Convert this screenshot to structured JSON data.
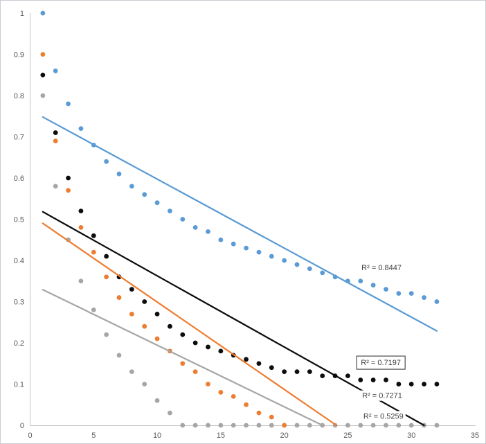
{
  "chart_data": {
    "type": "scatter",
    "title": "",
    "xlabel": "",
    "ylabel": "",
    "xlim": [
      0,
      35
    ],
    "ylim": [
      0,
      1
    ],
    "grid": false,
    "legend": "none",
    "x_tick_labels": [
      "0",
      "5",
      "10",
      "15",
      "20",
      "25",
      "30",
      "35"
    ],
    "y_tick_labels": [
      "0",
      "0.1",
      "0.2",
      "0.3",
      "0.4",
      "0.5",
      "0.6",
      "0.7",
      "0.8",
      "0.9",
      "1"
    ],
    "axis_color": "#c3c3c3",
    "tick_label_color": "#595959",
    "annotation_color": "#404040",
    "series": [
      {
        "name": "blue",
        "color": "#5B9BD5",
        "x": [
          1,
          2,
          3,
          4,
          5,
          6,
          7,
          8,
          9,
          10,
          11,
          12,
          13,
          14,
          15,
          16,
          17,
          18,
          19,
          20,
          21,
          22,
          23,
          24,
          25,
          26,
          27,
          28,
          29,
          30,
          31,
          32
        ],
        "y": [
          1.0,
          0.86,
          0.78,
          0.72,
          0.68,
          0.64,
          0.61,
          0.58,
          0.56,
          0.54,
          0.52,
          0.5,
          0.48,
          0.47,
          0.45,
          0.44,
          0.43,
          0.42,
          0.41,
          0.4,
          0.39,
          0.38,
          0.37,
          0.36,
          0.35,
          0.35,
          0.34,
          0.33,
          0.32,
          0.32,
          0.31,
          0.3
        ],
        "trendline": {
          "x1": 1,
          "y1": 0.748,
          "x2": 32,
          "y2": 0.229
        }
      },
      {
        "name": "gray",
        "color": "#A6A6A6",
        "x": [
          1,
          2,
          3,
          4,
          5,
          6,
          7,
          8,
          9,
          10,
          11,
          12,
          13,
          14,
          15,
          16,
          17,
          18,
          19,
          20,
          21,
          22,
          23,
          24,
          25,
          26,
          27,
          28,
          29,
          30,
          31,
          32
        ],
        "y": [
          0.8,
          0.58,
          0.45,
          0.35,
          0.28,
          0.22,
          0.17,
          0.13,
          0.1,
          0.06,
          0.03,
          0,
          0,
          0,
          0,
          0,
          0,
          0,
          0,
          0,
          0,
          0,
          0,
          0,
          0,
          0,
          0,
          0,
          0,
          0,
          0,
          0
        ],
        "trendline": {
          "x1": 1,
          "y1": 0.329,
          "x2": 23,
          "y2": 0
        }
      },
      {
        "name": "orange",
        "color": "#ED7D31",
        "x": [
          1,
          2,
          3,
          4,
          5,
          6,
          7,
          8,
          9,
          10,
          11,
          12,
          13,
          14,
          15,
          16,
          17,
          18,
          19,
          20
        ],
        "y": [
          0.9,
          0.69,
          0.57,
          0.48,
          0.42,
          0.36,
          0.31,
          0.27,
          0.24,
          0.21,
          0.18,
          0.15,
          0.13,
          0.1,
          0.08,
          0.07,
          0.05,
          0.03,
          0.02,
          0
        ],
        "trendline": {
          "x1": 1,
          "y1": 0.49,
          "x2": 24.1,
          "y2": 0
        }
      },
      {
        "name": "black",
        "color": "#0d0d0d",
        "x": [
          1,
          2,
          3,
          4,
          5,
          6,
          7,
          8,
          9,
          10,
          11,
          12,
          13,
          14,
          15,
          16,
          17,
          18,
          19,
          20,
          21,
          22,
          23,
          24,
          25,
          26,
          27,
          28,
          29,
          30,
          31,
          32
        ],
        "y": [
          0.85,
          0.71,
          0.6,
          0.52,
          0.46,
          0.41,
          0.36,
          0.33,
          0.3,
          0.27,
          0.24,
          0.22,
          0.2,
          0.19,
          0.18,
          0.17,
          0.16,
          0.15,
          0.14,
          0.13,
          0.13,
          0.13,
          0.12,
          0.12,
          0.12,
          0.11,
          0.11,
          0.11,
          0.1,
          0.1,
          0.1,
          0.1
        ],
        "trendline": {
          "x1": 1,
          "y1": 0.518,
          "x2": 31,
          "y2": 0
        }
      }
    ],
    "r2_labels": [
      {
        "text": "R² = 0.8447",
        "x": 27.65,
        "y": 0.382,
        "boxed": false
      },
      {
        "text": "R² = 0.7197",
        "x": 27.6,
        "y": 0.152,
        "boxed": true
      },
      {
        "text": "R² = 0.7271",
        "x": 27.7,
        "y": 0.072,
        "boxed": false
      },
      {
        "text": "R² = 0.5259",
        "x": 27.8,
        "y": 0.022,
        "boxed": false
      }
    ]
  }
}
